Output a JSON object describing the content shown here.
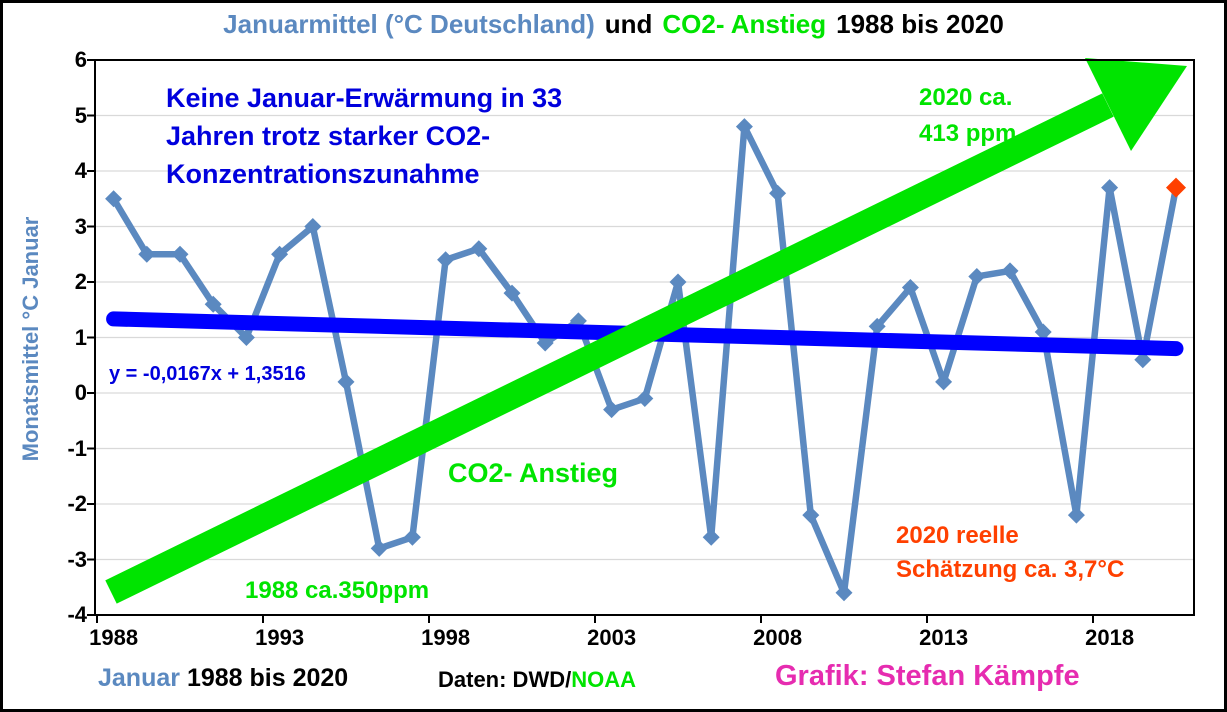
{
  "title": {
    "part1": "Januarmittel (°C Deutschland)",
    "part2": "und",
    "part3": "CO2- Anstieg",
    "part4": "1988 bis 2020"
  },
  "chart_data": {
    "type": "line",
    "title": "Januarmittel (°C Deutschland) und CO2- Anstieg 1988 bis 2020",
    "ylabel": "Monatsmittel °C Januar",
    "xlabel": "",
    "ylim": [
      -4,
      6
    ],
    "grid": true,
    "legend": "none",
    "x": [
      1988,
      1989,
      1990,
      1991,
      1992,
      1993,
      1994,
      1995,
      1996,
      1997,
      1998,
      1999,
      2000,
      2001,
      2002,
      2003,
      2004,
      2005,
      2006,
      2007,
      2008,
      2009,
      2010,
      2011,
      2012,
      2013,
      2014,
      2015,
      2016,
      2017,
      2018,
      2019,
      2020
    ],
    "series": [
      {
        "name": "Januarmittel (°C Deutschland)",
        "values": [
          3.5,
          2.5,
          2.5,
          1.6,
          1.0,
          2.5,
          3.0,
          0.2,
          -2.8,
          -2.6,
          2.4,
          2.6,
          1.8,
          0.9,
          1.3,
          -0.3,
          -0.1,
          2.0,
          -2.6,
          4.8,
          3.6,
          -2.2,
          -3.6,
          1.2,
          1.9,
          0.2,
          2.1,
          2.2,
          1.1,
          -2.2,
          3.7,
          0.6,
          3.7
        ]
      }
    ],
    "estimate_point": {
      "year": 2020,
      "value": 3.7,
      "note": "2020 reelle Schätzung ca. 3,7°C"
    },
    "trend": {
      "label": "y = -0,0167x + 1,3516",
      "slope": -0.0167,
      "intercept": 1.3516
    },
    "co2_arrow": {
      "label": "CO2- Anstieg",
      "start_year": 1988,
      "start_ppm": 350,
      "end_year": 2020,
      "end_ppm": 413
    },
    "y_ticks": [
      6,
      5,
      4,
      3,
      2,
      1,
      0,
      -1,
      -2,
      -3,
      -4
    ],
    "x_ticks": [
      1988,
      1993,
      1998,
      2003,
      2008,
      2013,
      2018
    ]
  },
  "y_axis": {
    "label": "Monatsmittel °C Januar"
  },
  "annotations": {
    "no_warming": [
      "Keine Januar-Erwärmung in 33",
      "Jahren trotz starker CO2-",
      "Konzentrationszunahme"
    ],
    "equation": "y = -0,0167x + 1,3516",
    "co2_label": "CO2- Anstieg",
    "co2_1988": "1988 ca.350ppm",
    "co2_2020_line1": "2020 ca.",
    "co2_2020_line2": "413 ppm",
    "estimate_line1": "2020 reelle",
    "estimate_line2": "Schätzung ca. 3,7°C"
  },
  "footer": {
    "january": "Januar",
    "range": "1988 bis 2020",
    "data_label": "Daten: DWD/",
    "noaa": "NOAA",
    "credit": "Grafik: Stefan Kämpfe"
  },
  "colors": {
    "series_blue": "#5B89C0",
    "trend_blue": "#0000FF",
    "co2_green": "#00E400",
    "estimate_red": "#FF4000",
    "annotation_blue": "#0000DD",
    "credit_magenta": "#E62CB0",
    "gridline_gray": "#D9D9D9"
  }
}
